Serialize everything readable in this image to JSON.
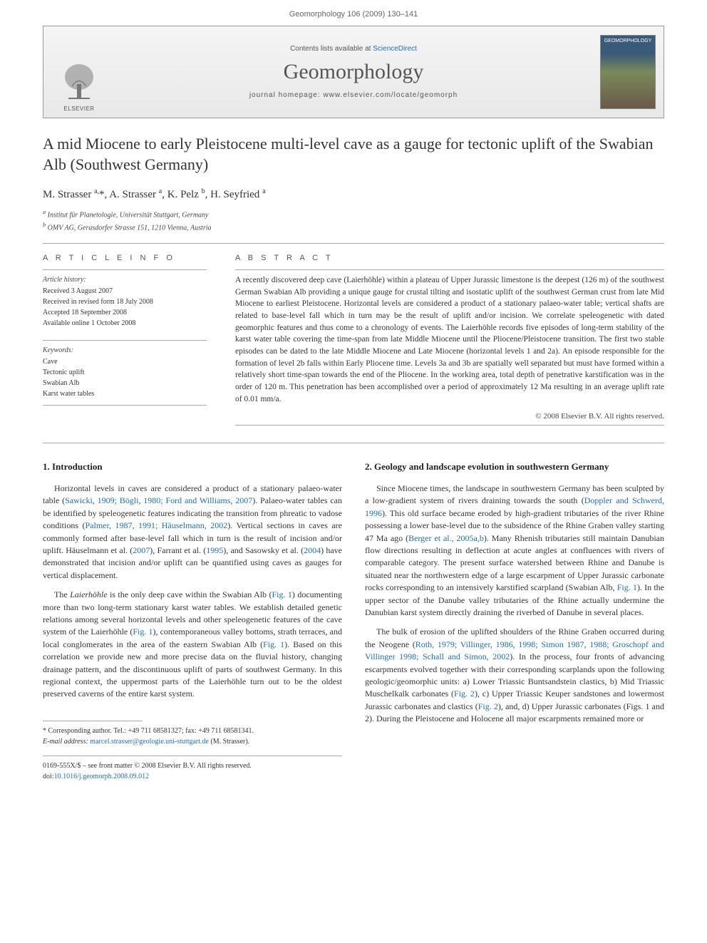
{
  "page_header": "Geomorphology 106 (2009) 130–141",
  "masthead": {
    "contents_prefix": "Contents lists available at ",
    "contents_link": "ScienceDirect",
    "journal": "Geomorphology",
    "homepage_prefix": "journal homepage: ",
    "homepage_url": "www.elsevier.com/locate/geomorph",
    "publisher_label": "ELSEVIER",
    "cover_label": "GEOMORPHOLOGY"
  },
  "title": "A mid Miocene to early Pleistocene multi-level cave as a gauge for tectonic uplift of the Swabian Alb (Southwest Germany)",
  "authors_html": "M. Strasser <sup>a,</sup>*, A. Strasser <sup>a</sup>, K. Pelz <sup>b</sup>, H. Seyfried <sup>a</sup>",
  "affiliations": [
    "a Institut für Planetologie, Universität Stuttgart, Germany",
    "b OMV AG, Gerasdorfer Strasse 151, 1210 Vienna, Austria"
  ],
  "article_info_label": "A R T I C L E   I N F O",
  "abstract_label": "A B S T R A C T",
  "history": {
    "label": "Article history:",
    "lines": [
      "Received 3 August 2007",
      "Received in revised form 18 July 2008",
      "Accepted 18 September 2008",
      "Available online 1 October 2008"
    ]
  },
  "keywords": {
    "label": "Keywords:",
    "items": [
      "Cave",
      "Tectonic uplift",
      "Swabian Alb",
      "Karst water tables"
    ]
  },
  "abstract": "A recently discovered deep cave (Laierhöhle) within a plateau of Upper Jurassic limestone is the deepest (126 m) of the southwest German Swabian Alb providing a unique gauge for crustal tilting and isostatic uplift of the southwest German crust from late Mid Miocene to earliest Pleistocene. Horizontal levels are considered a product of a stationary palaeo-water table; vertical shafts are related to base-level fall which in turn may be the result of uplift and/or incision. We correlate speleogenetic with dated geomorphic features and thus come to a chronology of events. The Laierhöhle records five episodes of long-term stability of the karst water table covering the time-span from late Middle Miocene until the Pliocene/Pleistocene transition. The first two stable episodes can be dated to the late Middle Miocene and Late Miocene (horizontal levels 1 and 2a). An episode responsible for the formation of level 2b falls within Early Pliocene time. Levels 3a and 3b are spatially well separated but must have formed within a relatively short time-span towards the end of the Pliocene. In the working area, total depth of penetrative karstification was in the order of 120 m. This penetration has been accomplished over a period of approximately 12 Ma resulting in an average uplift rate of 0.01 mm/a.",
  "copyright": "© 2008 Elsevier B.V. All rights reserved.",
  "sections": {
    "s1": {
      "heading": "1. Introduction",
      "paragraphs": [
        "Horizontal levels in caves are considered a product of a stationary palaeo-water table (Sawicki, 1909; Bögli, 1980; Ford and Williams, 2007). Palaeo-water tables can be identified by speleogenetic features indicating the transition from phreatic to vadose conditions (Palmer, 1987, 1991; Häuselmann, 2002). Vertical sections in caves are commonly formed after base-level fall which in turn is the result of incision and/or uplift. Häuselmann et al. (2007), Farrant et al. (1995), and Sasowsky et al. (2004) have demonstrated that incision and/or uplift can be quantified using caves as gauges for vertical displacement.",
        "The Laierhöhle is the only deep cave within the Swabian Alb (Fig. 1) documenting more than two long-term stationary karst water tables. We establish detailed genetic relations among several horizontal levels and other speleogenetic features of the cave system of the Laierhöhle (Fig. 1), contemporaneous valley bottoms, strath terraces, and local conglomerates in the area of the eastern Swabian Alb (Fig. 1). Based on this correlation we provide new and more precise data on the fluvial history, changing drainage pattern, and the discontinuous uplift of parts of southwest Germany. In this regional context, the uppermost parts of the Laierhöhle turn out to be the oldest preserved caverns of the entire karst system."
      ]
    },
    "s2": {
      "heading": "2. Geology and landscape evolution in southwestern Germany",
      "paragraphs": [
        "Since Miocene times, the landscape in southwestern Germany has been sculpted by a low-gradient system of rivers draining towards the south (Doppler and Schwerd, 1996). This old surface became eroded by high-gradient tributaries of the river Rhine possessing a lower base-level due to the subsidence of the Rhine Graben valley starting 47 Ma ago (Berger et al., 2005a,b). Many Rhenish tributaries still maintain Danubian flow directions resulting in deflection at acute angles at confluences with rivers of comparable category. The present surface watershed between Rhine and Danube is situated near the northwestern edge of a large escarpment of Upper Jurassic carbonate rocks corresponding to an intensively karstified scarpland (Swabian Alb, Fig. 1). In the upper sector of the Danube valley tributaries of the Rhine actually undermine the Danubian karst system directly draining the riverbed of Danube in several places.",
        "The bulk of erosion of the uplifted shoulders of the Rhine Graben occurred during the Neogene (Roth, 1979; Villinger, 1986, 1998; Simon 1987, 1988; Groschopf and Villinger 1998; Schall and Simon, 2002). In the process, four fronts of advancing escarpments evolved together with their corresponding scarplands upon the following geologic/geomorphic units: a) Lower Triassic Buntsandstein clastics, b) Mid Triassic Muschelkalk carbonates (Fig. 2), c) Upper Triassic Keuper sandstones and lowermost Jurassic carbonates and clastics (Fig. 2), and, d) Upper Jurassic carbonates (Figs. 1 and 2). During the Pleistocene and Holocene all major escarpments remained more or"
      ]
    }
  },
  "footnote": {
    "corr": "* Corresponding author. Tel.: +49 711 68581327; fax: +49 711 68581341.",
    "email_label": "E-mail address:",
    "email": "marcel.strasser@geologie.uni-stuttgart.de",
    "email_owner": "(M. Strasser)."
  },
  "footer": {
    "line1": "0169-555X/$ – see front matter © 2008 Elsevier B.V. All rights reserved.",
    "doi_prefix": "doi:",
    "doi": "10.1016/j.geomorph.2008.09.012"
  },
  "colors": {
    "link": "#1b6fb3",
    "text": "#333333",
    "rule": "#aaaaaa",
    "masthead_bg_top": "#f5f5f5",
    "masthead_bg_bottom": "#e8e8e8"
  }
}
